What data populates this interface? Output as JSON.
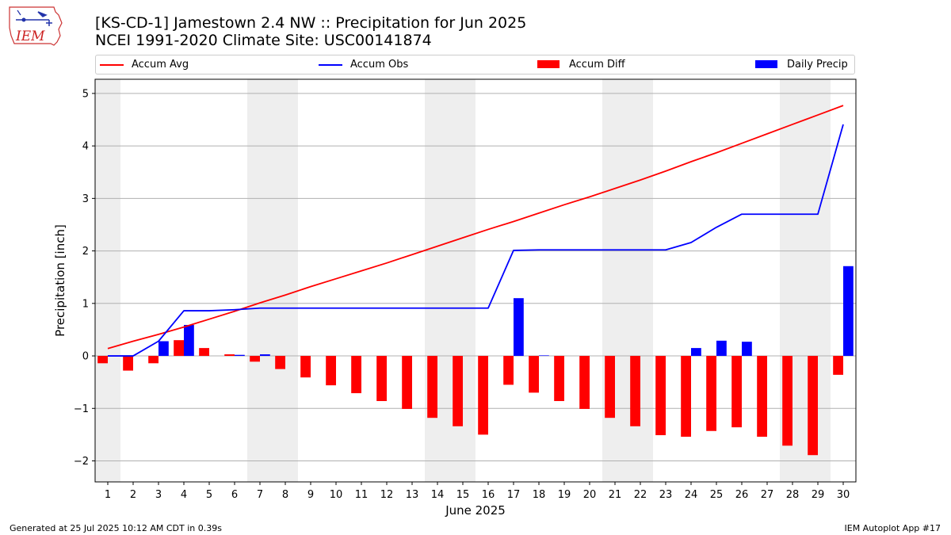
{
  "header": {
    "title_line1": "[KS-CD-1] Jamestown 2.4 NW :: Precipitation for Jun 2025",
    "title_line2": "NCEI 1991-2020 Climate Site: USC00141874",
    "logo_text": "IEM"
  },
  "footer": {
    "generated": "Generated at 25 Jul 2025 10:12 AM CDT in 0.39s",
    "app": "IEM Autoplot App #17"
  },
  "colors": {
    "avg": "#ff0000",
    "obs": "#0000ff",
    "diff": "#ff0000",
    "daily": "#0000ff",
    "weekend_shade": "#eeeeee",
    "grid": "#b0b0b0"
  },
  "legend": [
    {
      "label": "Accum Avg",
      "kind": "line",
      "color": "#ff0000"
    },
    {
      "label": "Accum Obs",
      "kind": "line",
      "color": "#0000ff"
    },
    {
      "label": "Accum Diff",
      "kind": "patch",
      "color": "#ff0000"
    },
    {
      "label": "Daily Precip",
      "kind": "patch",
      "color": "#0000ff"
    }
  ],
  "chart_data": {
    "type": "bar",
    "title": "[KS-CD-1] Jamestown 2.4 NW :: Precipitation for Jun 2025",
    "subtitle": "NCEI 1991-2020 Climate Site: USC00141874",
    "xlabel": "June 2025",
    "ylabel": "Precipitation [inch]",
    "xlim": [
      0.5,
      30.5
    ],
    "ylim": [
      -2.4,
      5.27
    ],
    "yticks": [
      -2,
      -1,
      0,
      1,
      2,
      3,
      4,
      5
    ],
    "ytick_labels": [
      "−2",
      "−1",
      "0",
      "1",
      "2",
      "3",
      "4",
      "5"
    ],
    "categories": [
      1,
      2,
      3,
      4,
      5,
      6,
      7,
      8,
      9,
      10,
      11,
      12,
      13,
      14,
      15,
      16,
      17,
      18,
      19,
      20,
      21,
      22,
      23,
      24,
      25,
      26,
      27,
      28,
      29,
      30
    ],
    "grid": "y",
    "legend_position": "top",
    "shaded_days": [
      1,
      7,
      8,
      14,
      15,
      21,
      22,
      28,
      29
    ],
    "series": [
      {
        "name": "Accum Avg",
        "kind": "line",
        "values": [
          0.14,
          0.28,
          0.41,
          0.55,
          0.7,
          0.85,
          1.01,
          1.16,
          1.32,
          1.47,
          1.62,
          1.77,
          1.93,
          2.09,
          2.25,
          2.41,
          2.56,
          2.72,
          2.88,
          3.03,
          3.19,
          3.35,
          3.52,
          3.7,
          3.87,
          4.05,
          4.23,
          4.41,
          4.59,
          4.77
        ]
      },
      {
        "name": "Accum Obs",
        "kind": "line",
        "values": [
          0.0,
          0.0,
          0.28,
          0.86,
          0.86,
          0.88,
          0.91,
          0.91,
          0.91,
          0.91,
          0.91,
          0.91,
          0.91,
          0.91,
          0.91,
          0.91,
          2.01,
          2.02,
          2.02,
          2.02,
          2.02,
          2.02,
          2.02,
          2.16,
          2.45,
          2.7,
          2.7,
          2.7,
          2.7,
          4.41
        ]
      },
      {
        "name": "Accum Diff",
        "kind": "bar",
        "values": [
          -0.14,
          -0.28,
          -0.14,
          0.3,
          0.15,
          0.03,
          -0.11,
          -0.25,
          -0.41,
          -0.56,
          -0.71,
          -0.86,
          -1.01,
          -1.18,
          -1.34,
          -1.5,
          -0.55,
          -0.7,
          -0.86,
          -1.01,
          -1.18,
          -1.34,
          -1.51,
          -1.54,
          -1.43,
          -1.36,
          -1.54,
          -1.71,
          -1.89,
          -0.36
        ]
      },
      {
        "name": "Daily Precip",
        "kind": "bar",
        "values": [
          0.0,
          0.0,
          0.28,
          0.59,
          0.0,
          0.02,
          0.03,
          0.0,
          0.0,
          0.0,
          0.0,
          0.0,
          0.0,
          0.0,
          0.0,
          0.0,
          1.1,
          0.01,
          0.0,
          0.0,
          0.0,
          0.0,
          0.0,
          0.15,
          0.29,
          0.27,
          0.0,
          0.0,
          0.0,
          1.71
        ]
      }
    ]
  }
}
